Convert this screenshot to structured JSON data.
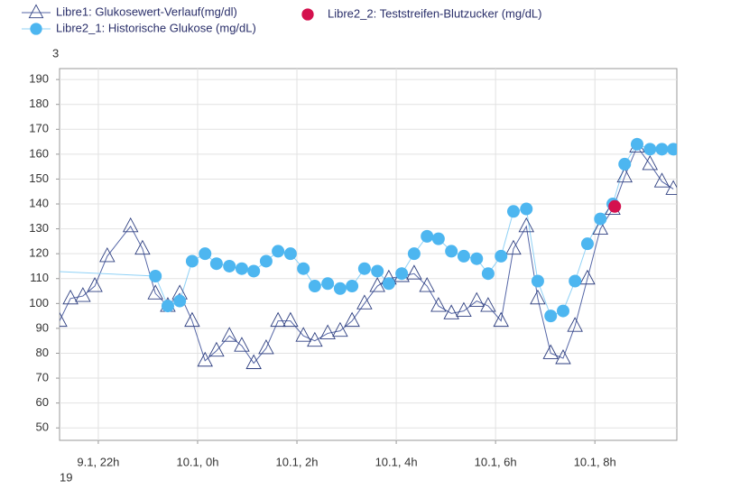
{
  "chart_data": {
    "type": "line",
    "top_left_label": "3",
    "bottom_left_label": "19",
    "xlim": [
      21.22,
      33.65
    ],
    "ylim": [
      45,
      194.4
    ],
    "xticks": [
      {
        "value": 22,
        "label": "9.1, 22h"
      },
      {
        "value": 24,
        "label": "10.1, 0h"
      },
      {
        "value": 26,
        "label": "10.1, 2h"
      },
      {
        "value": 28,
        "label": "10.1, 4h"
      },
      {
        "value": 30,
        "label": "10.1, 6h"
      },
      {
        "value": 32,
        "label": "10.1, 8h"
      }
    ],
    "yticks": [
      50,
      60,
      70,
      80,
      90,
      100,
      110,
      120,
      130,
      140,
      150,
      160,
      170,
      180,
      190
    ],
    "grid": true,
    "series": [
      {
        "name": "Libre1: Glukosewert-Verlauf(mg/dl)",
        "color": "#2e3f80",
        "line_color": "#5566a6",
        "marker": "triangle",
        "line": true,
        "x": [
          21.22,
          21.44,
          21.69,
          21.93,
          22.18,
          22.65,
          22.89,
          23.15,
          23.4,
          23.64,
          23.89,
          24.15,
          24.38,
          24.64,
          24.89,
          25.13,
          25.38,
          25.62,
          25.87,
          26.13,
          26.36,
          26.62,
          26.87,
          27.11,
          27.36,
          27.62,
          27.85,
          28.11,
          28.36,
          28.62,
          28.85,
          29.11,
          29.36,
          29.62,
          29.85,
          30.11,
          30.36,
          30.62,
          30.85,
          31.11,
          31.36,
          31.6,
          31.85,
          32.11,
          32.36,
          32.6,
          32.85,
          33.11,
          33.35,
          33.58
        ],
        "values": [
          93,
          102,
          103,
          107,
          119,
          131,
          122,
          104,
          99,
          104,
          93,
          77,
          81,
          87,
          83,
          76,
          82,
          93,
          93,
          87,
          85,
          88,
          89,
          93,
          100,
          107,
          110,
          111,
          112,
          107,
          99,
          96,
          97,
          101,
          99,
          93,
          122,
          131,
          102,
          80,
          78,
          91,
          110,
          130,
          138,
          151,
          163,
          156,
          149,
          146
        ]
      },
      {
        "name": "Libre2_1: Historische Glukose (mg/dL)",
        "color": "#4db6f0",
        "line_color": "#8fd1f6",
        "marker": "circle",
        "line": true,
        "x": [
          21.0,
          23.15,
          23.4,
          23.64,
          23.89,
          24.15,
          24.38,
          24.64,
          24.89,
          25.13,
          25.38,
          25.62,
          25.87,
          26.13,
          26.36,
          26.62,
          26.87,
          27.11,
          27.36,
          27.62,
          27.85,
          28.11,
          28.36,
          28.62,
          28.85,
          29.11,
          29.36,
          29.62,
          29.85,
          30.11,
          30.36,
          30.62,
          30.85,
          31.11,
          31.36,
          31.6,
          31.85,
          32.11,
          32.36,
          32.6,
          32.85,
          33.11,
          33.35,
          33.58
        ],
        "values": [
          113,
          111,
          99,
          101,
          117,
          120,
          116,
          115,
          114,
          113,
          117,
          121,
          120,
          114,
          107,
          108,
          106,
          107,
          114,
          113,
          108,
          112,
          120,
          127,
          126,
          121,
          119,
          118,
          112,
          119,
          137,
          138,
          109,
          95,
          97,
          109,
          124,
          134,
          140,
          156,
          164,
          162,
          162,
          162
        ]
      },
      {
        "name": "Libre2_2: Teststreifen-Blutzucker (mg/dL)",
        "color": "#d4114e",
        "marker": "circle",
        "line": false,
        "x": [
          32.4
        ],
        "values": [
          139
        ]
      }
    ]
  }
}
